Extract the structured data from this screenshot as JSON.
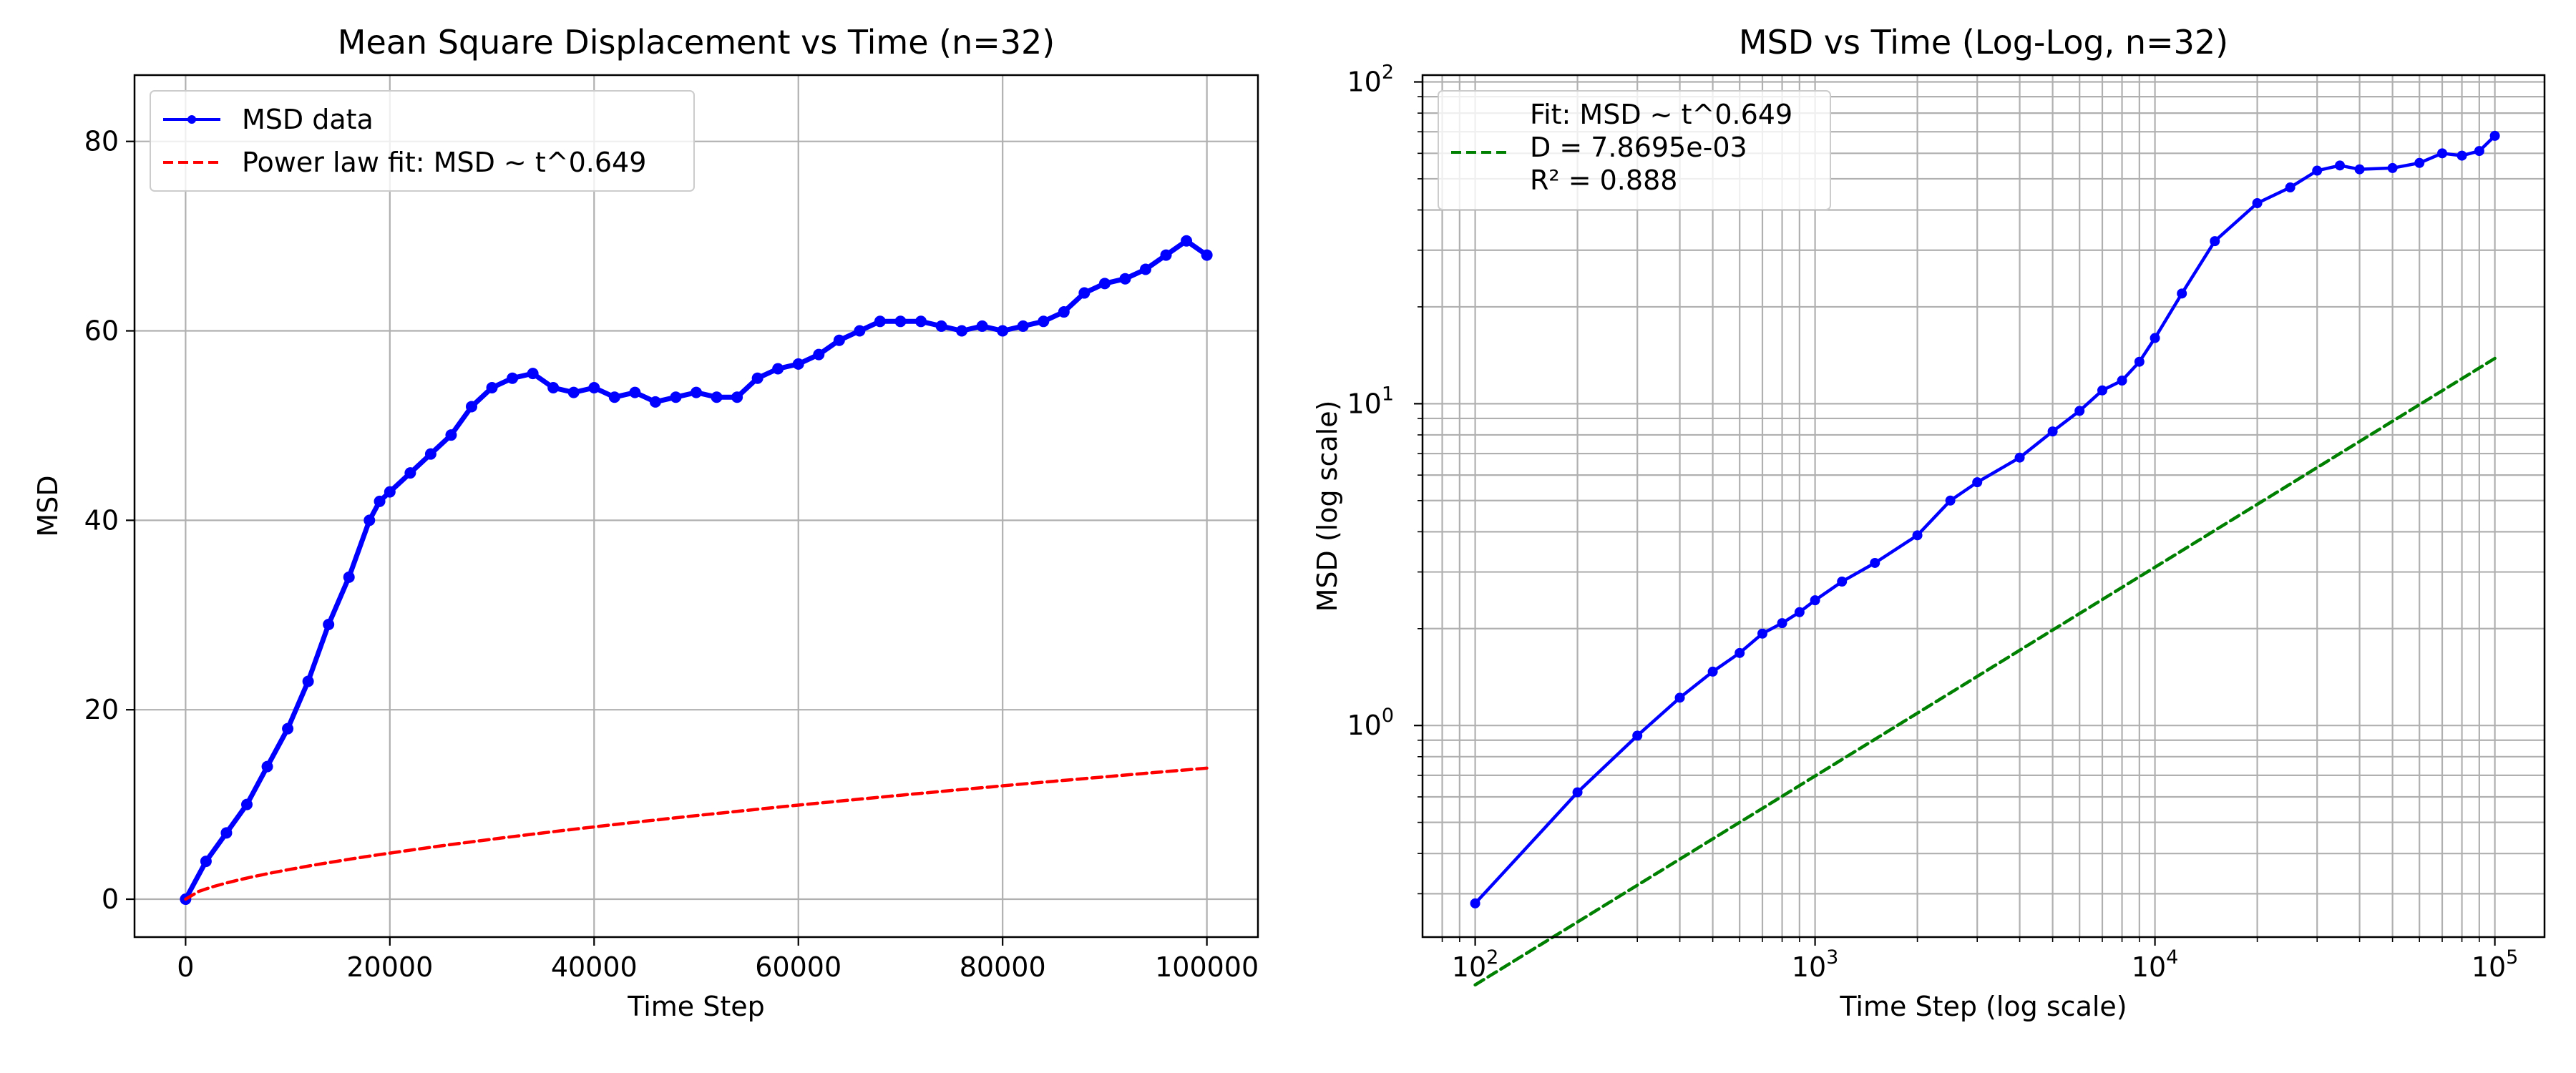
{
  "chart_data": [
    {
      "type": "line",
      "title": "Mean Square Displacement vs Time (n=32)",
      "xlabel": "Time Step",
      "ylabel": "MSD",
      "xlim": [
        -5000,
        105000
      ],
      "ylim": [
        -4,
        87
      ],
      "xticks": [
        0,
        20000,
        40000,
        60000,
        80000,
        100000
      ],
      "xtick_labels": [
        "0",
        "20000",
        "40000",
        "60000",
        "80000",
        "100000"
      ],
      "yticks": [
        0,
        20,
        40,
        60,
        80
      ],
      "ytick_labels": [
        "0",
        "20",
        "40",
        "60",
        "80"
      ],
      "grid": true,
      "legend_position": "top-left",
      "series": [
        {
          "name": "MSD data",
          "color": "#0000ff",
          "style": "solid-with-markers",
          "x": [
            0,
            2000,
            4000,
            6000,
            8000,
            10000,
            12000,
            14000,
            16000,
            18000,
            19000,
            20000,
            22000,
            24000,
            26000,
            28000,
            30000,
            32000,
            34000,
            36000,
            38000,
            40000,
            42000,
            44000,
            46000,
            48000,
            50000,
            52000,
            54000,
            56000,
            58000,
            60000,
            62000,
            64000,
            66000,
            68000,
            70000,
            72000,
            74000,
            76000,
            78000,
            80000,
            82000,
            84000,
            86000,
            88000,
            90000,
            92000,
            94000,
            96000,
            98000,
            100000
          ],
          "y": [
            0,
            4,
            7,
            10,
            14,
            18,
            23,
            29,
            34,
            40,
            42,
            43,
            45,
            47,
            49,
            52,
            54,
            55,
            55.5,
            54,
            53.5,
            54,
            53,
            53.5,
            52.5,
            53,
            53.5,
            53,
            53,
            55,
            56,
            56.5,
            57.5,
            59,
            60,
            61,
            61,
            61,
            60.5,
            60,
            60.5,
            60,
            60.5,
            61,
            62,
            64,
            65,
            65.5,
            66.5,
            68,
            69.5,
            68
          ]
        },
        {
          "name": "Power law fit: MSD ~ t^0.649",
          "color": "#ff0000",
          "style": "dashed",
          "fit": {
            "D": 0.0078695,
            "exponent": 0.649
          },
          "x_range": [
            0,
            100000
          ]
        }
      ]
    },
    {
      "type": "line",
      "title": "MSD vs Time (Log-Log, n=32)",
      "xlabel": "Time Step (log scale)",
      "ylabel": "MSD (log scale)",
      "xscale": "log",
      "yscale": "log",
      "xlim": [
        70,
        140000
      ],
      "ylim": [
        0.22,
        105
      ],
      "xticks": [
        100,
        1000,
        10000,
        100000
      ],
      "xtick_labels": [
        "10",
        "10",
        "10",
        "10"
      ],
      "xtick_exponents": [
        "2",
        "3",
        "4",
        "5"
      ],
      "yticks": [
        1,
        10,
        100
      ],
      "ytick_labels": [
        "10",
        "10",
        "10"
      ],
      "ytick_exponents": [
        "0",
        "1",
        "2"
      ],
      "grid": true,
      "legend_position": "top-left",
      "series": [
        {
          "name": "",
          "color": "#0000ff",
          "style": "solid-with-markers",
          "x": [
            100,
            200,
            300,
            400,
            500,
            600,
            700,
            800,
            900,
            1000,
            1200,
            1500,
            2000,
            2500,
            3000,
            4000,
            5000,
            6000,
            7000,
            8000,
            9000,
            10000,
            12000,
            15000,
            20000,
            25000,
            30000,
            35000,
            40000,
            50000,
            60000,
            70000,
            80000,
            90000,
            100000
          ],
          "y": [
            0.28,
            0.62,
            0.93,
            1.22,
            1.47,
            1.68,
            1.93,
            2.08,
            2.25,
            2.45,
            2.8,
            3.2,
            3.9,
            5.0,
            5.7,
            6.8,
            8.2,
            9.5,
            11,
            11.8,
            13.5,
            16,
            22,
            32,
            42,
            47,
            53,
            55,
            53.5,
            54,
            56,
            60,
            59,
            61,
            68
          ]
        },
        {
          "name": "",
          "color": "#008000",
          "style": "dashed",
          "fit": {
            "D": 0.0078695,
            "exponent": 0.649
          },
          "x_range": [
            100,
            100000
          ]
        }
      ],
      "legend_lines": [
        "Fit: MSD ~ t^0.649",
        "D = 7.8695e-03",
        "R² = 0.888"
      ]
    }
  ]
}
